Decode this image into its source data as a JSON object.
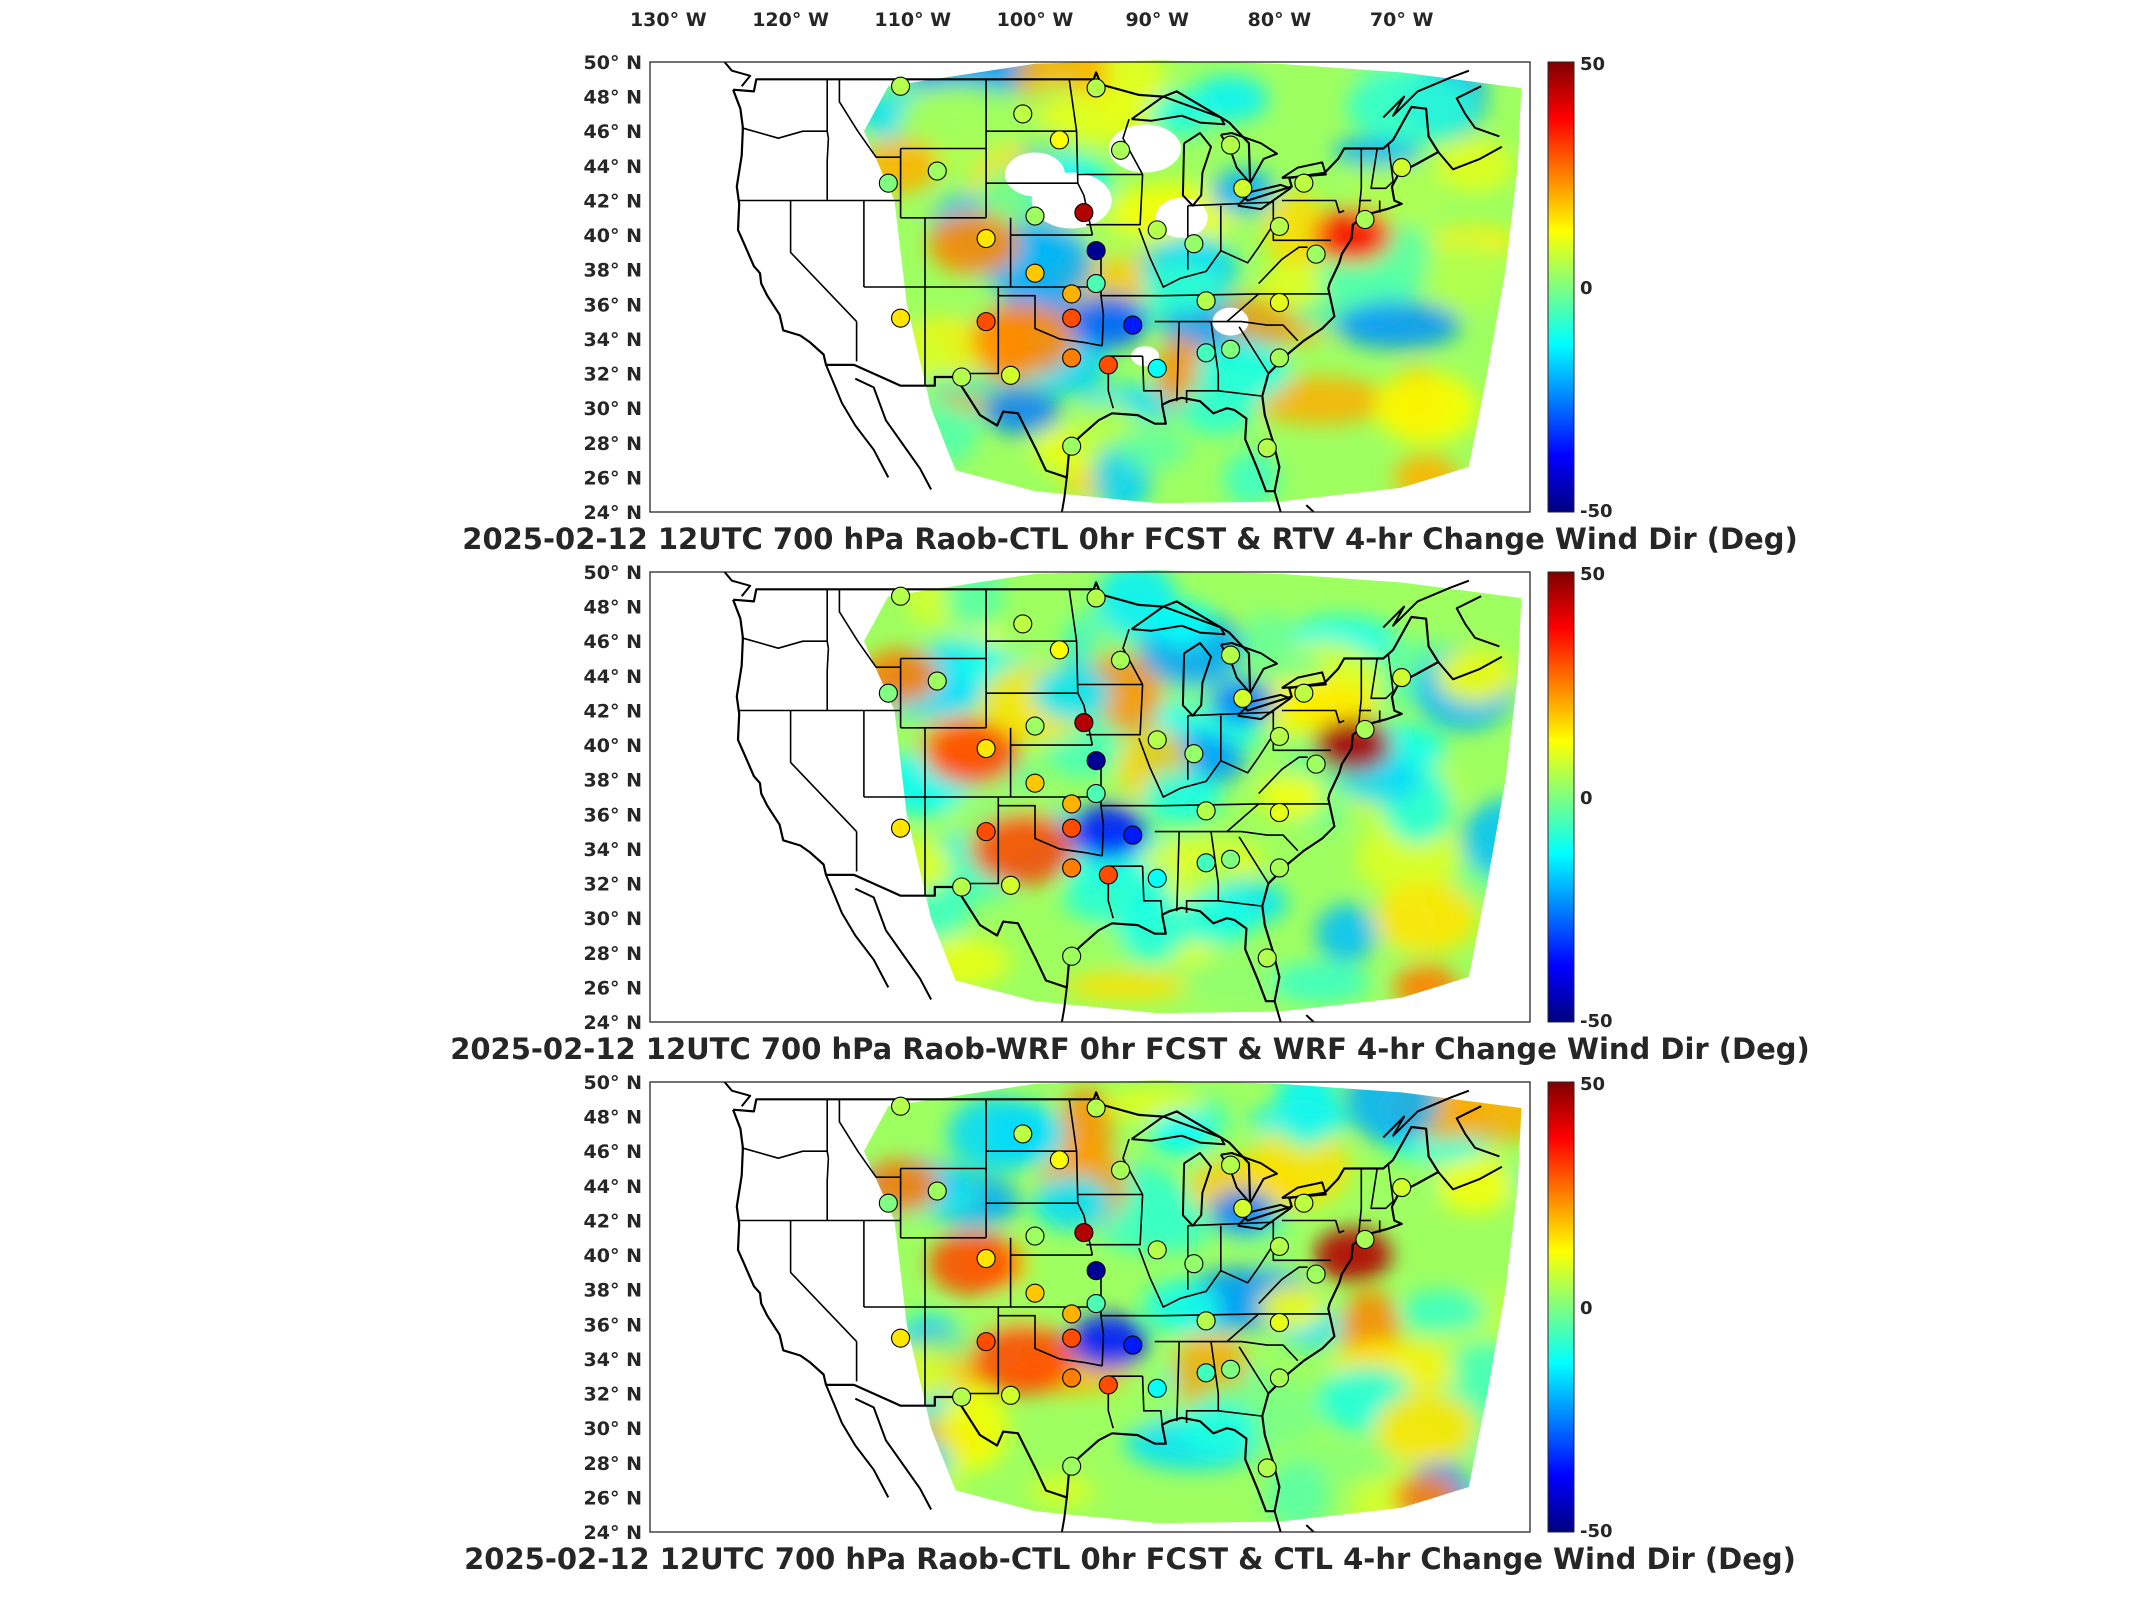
{
  "longitude_labels": [
    "130",
    "120",
    "110",
    "100",
    "90",
    "80",
    "70"
  ],
  "longitude_suffix": "W",
  "latitude_labels": [
    "50",
    "48",
    "46",
    "44",
    "42",
    "40",
    "38",
    "36",
    "34",
    "32",
    "30",
    "28",
    "26",
    "24"
  ],
  "latitude_suffix": "N",
  "degree_symbol": "°",
  "colorbar": {
    "max_label": "50",
    "mid_label": "0",
    "min_label": "-50",
    "colormap": [
      "#00007f",
      "#0000ff",
      "#007fff",
      "#00ffff",
      "#7fff7f",
      "#ffff00",
      "#ff7f00",
      "#ff0000",
      "#7f0000"
    ]
  },
  "panels": [
    {
      "title": "2025-02-12 12UTC 700 hPa Raob-CTL 0hr FCST & RTV 4-hr Change Wind Dir (Deg)"
    },
    {
      "title": "2025-02-12 12UTC 700 hPa Raob-WRF 0hr FCST & WRF 4-hr Change Wind Dir (Deg)"
    },
    {
      "title": "2025-02-12 12UTC 700 hPa Raob-CTL 0hr FCST & CTL 4-hr Change Wind Dir (Deg)"
    }
  ],
  "stations": [
    {
      "lon": -111,
      "lat": 48.6,
      "v": 5
    },
    {
      "lon": -101,
      "lat": 47.0,
      "v": 6
    },
    {
      "lon": -98,
      "lat": 45.5,
      "v": 12
    },
    {
      "lon": -108,
      "lat": 43.7,
      "v": 3
    },
    {
      "lon": -112,
      "lat": 43.0,
      "v": 0
    },
    {
      "lon": -100,
      "lat": 41.1,
      "v": 3
    },
    {
      "lon": -96,
      "lat": 41.3,
      "v": 45
    },
    {
      "lon": -95,
      "lat": 39.1,
      "v": -48
    },
    {
      "lon": -104,
      "lat": 39.8,
      "v": 15
    },
    {
      "lon": -100,
      "lat": 37.8,
      "v": 18
    },
    {
      "lon": -97,
      "lat": 36.6,
      "v": 20
    },
    {
      "lon": -111,
      "lat": 35.2,
      "v": 15
    },
    {
      "lon": -104,
      "lat": 35.0,
      "v": 30
    },
    {
      "lon": -97,
      "lat": 35.2,
      "v": 30
    },
    {
      "lon": -95,
      "lat": 37.2,
      "v": -5
    },
    {
      "lon": -92,
      "lat": 34.8,
      "v": -35
    },
    {
      "lon": -97,
      "lat": 32.9,
      "v": 25
    },
    {
      "lon": -94,
      "lat": 32.5,
      "v": 30
    },
    {
      "lon": -102,
      "lat": 31.9,
      "v": 8
    },
    {
      "lon": -106,
      "lat": 31.8,
      "v": 5
    },
    {
      "lon": -97,
      "lat": 27.8,
      "v": 3
    },
    {
      "lon": -90,
      "lat": 32.3,
      "v": -12
    },
    {
      "lon": -86,
      "lat": 33.2,
      "v": -6
    },
    {
      "lon": -84,
      "lat": 33.4,
      "v": 0
    },
    {
      "lon": -80,
      "lat": 32.9,
      "v": 4
    },
    {
      "lon": -81,
      "lat": 27.7,
      "v": 5
    },
    {
      "lon": -86,
      "lat": 36.2,
      "v": 5
    },
    {
      "lon": -80,
      "lat": 36.1,
      "v": 10
    },
    {
      "lon": -87,
      "lat": 39.5,
      "v": 2
    },
    {
      "lon": -90,
      "lat": 40.3,
      "v": 5
    },
    {
      "lon": -93,
      "lat": 44.9,
      "v": 4
    },
    {
      "lon": -84,
      "lat": 45.2,
      "v": 5
    },
    {
      "lon": -83,
      "lat": 42.7,
      "v": 8
    },
    {
      "lon": -80,
      "lat": 40.5,
      "v": 5
    },
    {
      "lon": -77,
      "lat": 38.9,
      "v": 3
    },
    {
      "lon": -78,
      "lat": 43.0,
      "v": 6
    },
    {
      "lon": -73,
      "lat": 40.9,
      "v": 4
    },
    {
      "lon": -70,
      "lat": 43.9,
      "v": 8
    },
    {
      "lon": -95,
      "lat": 48.5,
      "v": 5
    }
  ]
}
